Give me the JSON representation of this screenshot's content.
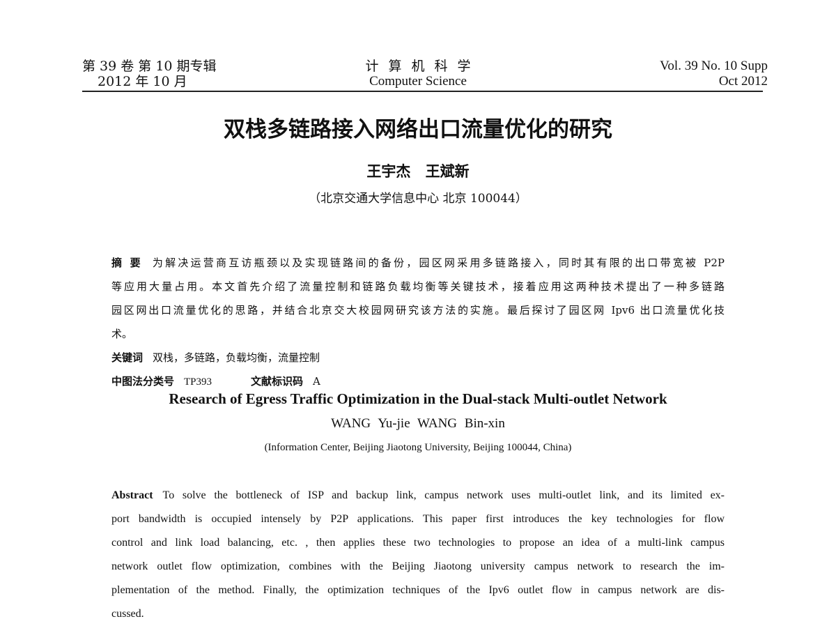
{
  "header": {
    "left_line1": "第 39 卷  第 10 期专辑",
    "left_line2": "2012 年 10 月",
    "journal_cn": "计算机科学",
    "journal_en": "Computer  Science",
    "right_line1": "Vol. 39 No. 10 Supp",
    "right_line2": "Oct 2012"
  },
  "title_cn": "双栈多链路接入网络出口流量优化的研究",
  "authors_cn": "王宇杰 王斌新",
  "affiliation_cn": "（北京交通大学信息中心   北京 100044）",
  "abstract_cn": {
    "label": "摘  要",
    "lines": [
      "为解决运营商互访瓶颈以及实现链路间的备份，园区网采用多链路接入，同时其有限的出口带宽被 P2P",
      "等应用大量占用。本文首先介绍了流量控制和链路负载均衡等关键技术，接着应用这两种技术提出了一种多链路",
      "园区网出口流量优化的思路，并结合北京交大校园网研究该方法的实施。最后探讨了园区网 Ipv6 出口流量优化技",
      "术。"
    ]
  },
  "keywords_cn": {
    "label": "关键词",
    "value": "双栈，多链路，负载均衡，流量控制"
  },
  "classification": {
    "label": "中图法分类号",
    "value": "TP393",
    "doc_label": "文献标识码",
    "doc_value": "A"
  },
  "title_en": "Research of Egress Traffic Optimization in the Dual-stack Multi-outlet Network",
  "authors_en": "WANG Yu-jie   WANG Bin-xin",
  "affiliation_en": "(Information Center, Beijing Jiaotong University, Beijing 100044, China)",
  "abstract_en": {
    "label": "Abstract",
    "lines": [
      "To solve the bottleneck of ISP and backup link, campus network uses multi-outlet link, and its limited ex-",
      "port bandwidth is occupied intensely by P2P applications. This paper first introduces the key technologies for flow",
      "control and link load balancing, etc. , then applies these two technologies to propose an idea of a multi-link campus",
      "network outlet flow optimization, combines with the Beijing Jiaotong university campus network to research the im-",
      "plementation of the method. Finally, the optimization techniques of the Ipv6 outlet flow in campus network are dis-",
      "cussed."
    ]
  }
}
